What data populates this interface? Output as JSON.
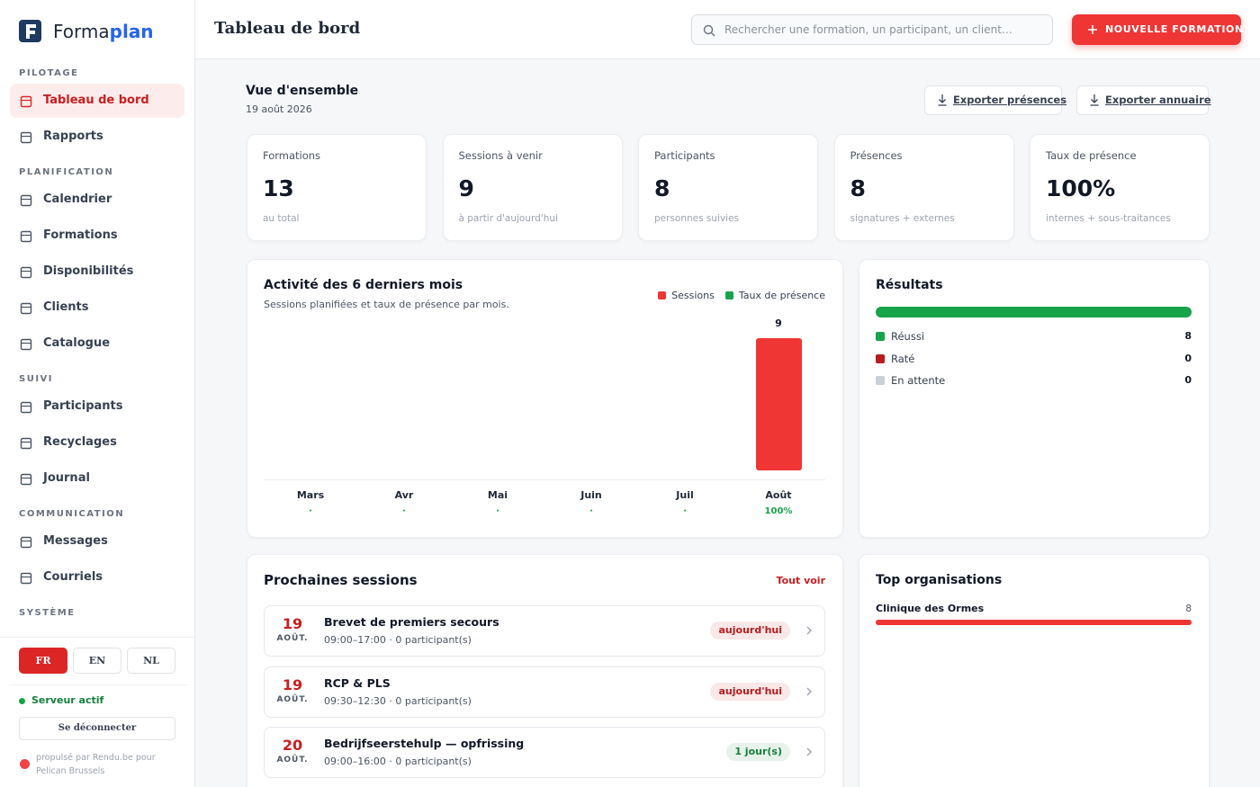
{
  "brand": {
    "name_a": "Forma",
    "name_b": "plan"
  },
  "nav": [
    {
      "title": "PILOTAGE",
      "items": [
        "Tableau de bord",
        "Rapports"
      ]
    },
    {
      "title": "PLANIFICATION",
      "items": [
        "Calendrier",
        "Formations",
        "Disponibilités",
        "Clients",
        "Catalogue"
      ]
    },
    {
      "title": "SUIVI",
      "items": [
        "Participants",
        "Recyclages",
        "Journal"
      ]
    },
    {
      "title": "COMMUNICATION",
      "items": [
        "Messages",
        "Courriels"
      ]
    },
    {
      "title": "SYSTÈME",
      "items": []
    }
  ],
  "languages": [
    "FR",
    "EN",
    "NL"
  ],
  "status": "Serveur actif",
  "logout": "Se déconnecter",
  "powered": "propulsé par Rendu.be pour Pelican Brussels",
  "header": {
    "title": "Tableau de bord",
    "search": "Rechercher une formation, un participant, un client…",
    "new_button": "NOUVELLE FORMATION"
  },
  "overview": {
    "title": "Vue d'ensemble",
    "date": "19 août 2026",
    "exports": [
      "Exporter présences",
      "Exporter annuaire"
    ]
  },
  "kpis": [
    {
      "label": "Formations",
      "value": 13,
      "note": "au total"
    },
    {
      "label": "Sessions à venir",
      "value": 9,
      "note": "à partir d'aujourd'hui"
    },
    {
      "label": "Participants",
      "value": 8,
      "note": "personnes suivies"
    },
    {
      "label": "Présences",
      "value": 8,
      "note": "signatures + externes"
    },
    {
      "label": "Taux de présence",
      "value": "100%",
      "note": "internes + sous-traitances"
    }
  ],
  "activity": {
    "title": "Activité des 6 derniers mois",
    "subtitle": "Sessions planifiées et taux de présence par mois.",
    "legend": [
      {
        "name": "Sessions",
        "color": "#f03535"
      },
      {
        "name": "Taux de présence",
        "color": "#16a34a"
      }
    ],
    "categories": [
      "Mars",
      "Avr",
      "Mai",
      "Juin",
      "Juil",
      "Août"
    ],
    "sessions": [
      0,
      0,
      0,
      0,
      0,
      9
    ],
    "presence": [
      "·",
      "·",
      "·",
      "·",
      "·",
      "100%"
    ]
  },
  "results": {
    "title": "Résultats",
    "items": [
      {
        "label": "Réussi",
        "value": 8,
        "color": "#16a34a"
      },
      {
        "label": "Raté",
        "value": 0,
        "color": "#b91c1c"
      },
      {
        "label": "En attente",
        "value": 0,
        "color": "#cbd0d6"
      }
    ]
  },
  "sessions": {
    "title": "Prochaines sessions",
    "link": "Tout voir",
    "items": [
      {
        "day": "19",
        "month": "AOÛT.",
        "title": "Brevet de premiers secours",
        "meta": "09:00–17:00 · 0 participant(s)",
        "badge": "aujourd'hui",
        "badge_color": "#b91c1c"
      },
      {
        "day": "19",
        "month": "AOÛT.",
        "title": "RCP & PLS",
        "meta": "09:30–12:30 · 0 participant(s)",
        "badge": "aujourd'hui",
        "badge_color": "#b91c1c"
      },
      {
        "day": "20",
        "month": "AOÛT.",
        "title": "Bedrijfseerstehulp — opfrissing",
        "meta": "09:00–16:00 · 0 participant(s)",
        "badge": "1 jour(s)",
        "badge_color": "#15803d"
      }
    ]
  },
  "organisations": {
    "title": "Top organisations",
    "items": [
      {
        "name": "Clinique des Ormes",
        "value": 8
      }
    ]
  }
}
